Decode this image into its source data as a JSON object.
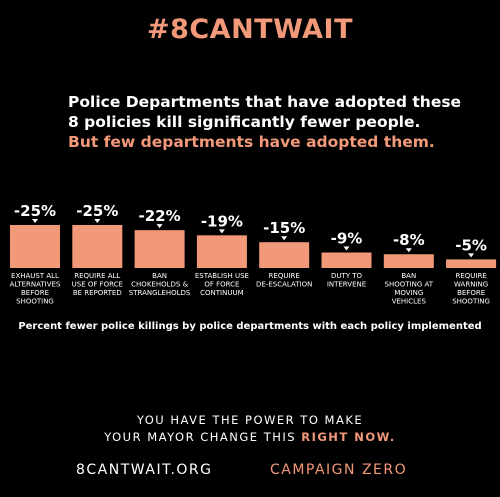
{
  "colors": {
    "accent": "#f2997a",
    "background": "#000000",
    "text": "#ffffff"
  },
  "header": {
    "hashtag": "#8CANTWAIT"
  },
  "headline": {
    "line1": "Police Departments that have adopted these",
    "line2": "8 policies kill significantly fewer people.",
    "line3": "But few departments have adopted them."
  },
  "chart_data": {
    "type": "bar",
    "categories": [
      [
        "EXHAUST ALL",
        "ALTERNATIVES",
        "BEFORE",
        "SHOOTING"
      ],
      [
        "REQUIRE ALL",
        "USE OF FORCE",
        "BE REPORTED"
      ],
      [
        "BAN",
        "CHOKEHOLDS &",
        "STRANGLEHOLDS"
      ],
      [
        "ESTABLISH USE",
        "OF FORCE",
        "CONTINUUM"
      ],
      [
        "REQUIRE",
        "DE-ESCALATION"
      ],
      [
        "DUTY TO",
        "INTERVENE"
      ],
      [
        "BAN",
        "SHOOTING AT",
        "MOVING",
        "VEHICLES"
      ],
      [
        "REQUIRE",
        "WARNING",
        "BEFORE",
        "SHOOTING"
      ]
    ],
    "values": [
      25,
      25,
      22,
      19,
      15,
      9,
      8,
      5
    ],
    "value_labels": [
      "-25%",
      "-25%",
      "-22%",
      "-19%",
      "-15%",
      "-9%",
      "-8%",
      "-5%"
    ],
    "xlabel": "Percent fewer police killings by police departments with each policy implemented",
    "ylim": [
      0,
      25
    ],
    "grid": false
  },
  "cta": {
    "line1": "YOU HAVE THE POWER TO MAKE",
    "line2_prefix": "YOUR MAYOR CHANGE THIS ",
    "line2_highlight": "RIGHT NOW."
  },
  "footer": {
    "website": "8CANTWAIT.ORG",
    "organization": "CAMPAIGN ZERO"
  }
}
